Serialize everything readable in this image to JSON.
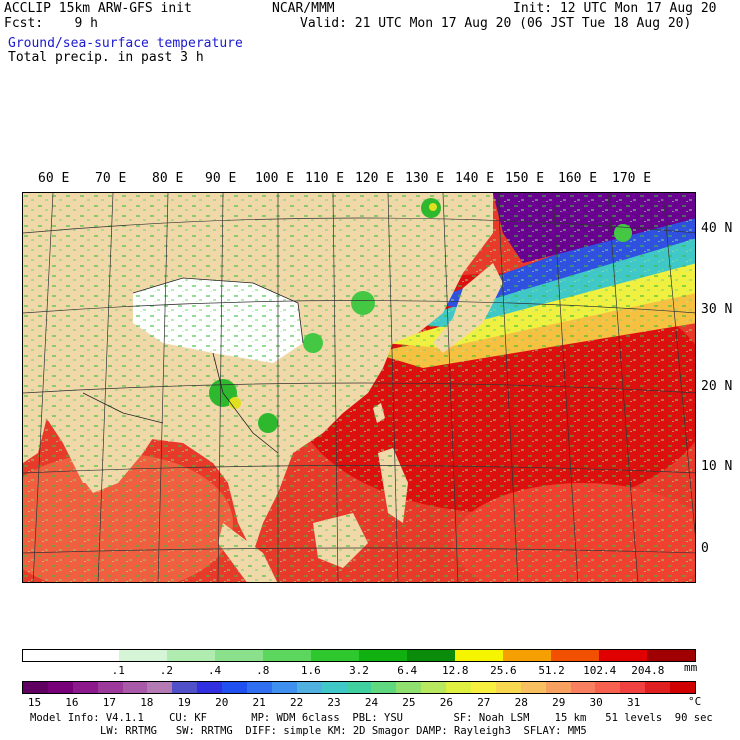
{
  "header": {
    "left_line1": "ACCLIP 15km ARW-GFS init",
    "left_line2": "Fcst:    9 h",
    "center_line1": "NCAR/MMM",
    "right_line1": "Init: 12 UTC Mon 17 Aug 20",
    "right_line2": "Valid: 21 UTC Mon 17 Aug 20 (06 JST Tue 18 Aug 20)",
    "field1": "Ground/sea-surface temperature",
    "field2": "Total precip. in past 3 h"
  },
  "map": {
    "lon_labels": [
      "60 E",
      "70 E",
      "80 E",
      "90 E",
      "100 E",
      "110 E",
      "120 E",
      "130 E",
      "140 E",
      "150 E",
      "160 E",
      "170 E"
    ],
    "lat_labels": [
      "40 N",
      "30 N",
      "20 N",
      "10 N",
      "0"
    ]
  },
  "precip_bar": {
    "unit": "mm",
    "ticks": [
      ".1",
      ".2",
      ".4",
      ".8",
      "1.6",
      "3.2",
      "6.4",
      "12.8",
      "25.6",
      "51.2",
      "102.4",
      "204.8"
    ],
    "colors": [
      "#ffffff",
      "#ffffff",
      "#d6f5d6",
      "#b0ecb0",
      "#8be08b",
      "#5cd65c",
      "#2ec82e",
      "#10b010",
      "#0a8c0a",
      "#f5f500",
      "#f5a000",
      "#f05000",
      "#e00000",
      "#a00000"
    ]
  },
  "temp_bar": {
    "unit": "°C",
    "ticks": [
      "15",
      "16",
      "17",
      "18",
      "19",
      "20",
      "21",
      "22",
      "23",
      "24",
      "25",
      "26",
      "27",
      "28",
      "29",
      "30",
      "31"
    ],
    "colors": [
      "#600060",
      "#780078",
      "#8c1a8c",
      "#9c3a9c",
      "#a85aa8",
      "#b47ab4",
      "#5050c8",
      "#3030e0",
      "#2050f0",
      "#3070f0",
      "#4090f0",
      "#50b0e0",
      "#40c8c8",
      "#40d0a0",
      "#60d880",
      "#90e070",
      "#b8e860",
      "#e0f040",
      "#f8f040",
      "#f8d850",
      "#f8c060",
      "#f8a060",
      "#f88060",
      "#f86050",
      "#f04040",
      "#e02020",
      "#d00000"
    ]
  },
  "footer": {
    "line1": "Model Info: V4.1.1    CU: KF       MP: WDM 6class  PBL: YSU        SF: Noah LSM    15 km   51 levels  90 sec",
    "line2": "LW: RRTMG   SW: RRTMG  DIFF: simple KM: 2D Smagor DAMP: Rayleigh3  SFLAY: MM5"
  },
  "colors": {
    "land": "#f0d8a8",
    "plateau_snow": "#ffffff",
    "warm_sea": "#e62020",
    "very_warm_sea": "#d00000",
    "cool_sea": "#2b2bd0",
    "cold_sea": "#7000a0"
  }
}
